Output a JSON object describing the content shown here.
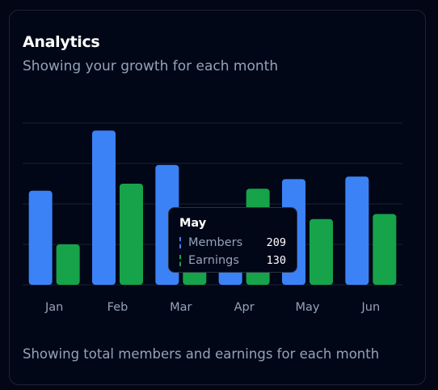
{
  "card": {
    "title": "Analytics",
    "subtitle": "Showing your growth for each month",
    "footer": "Showing total members and earnings for each month"
  },
  "tooltip": {
    "title": "May",
    "rows": [
      {
        "label": "Members",
        "value": "209",
        "color": "#3b82f6"
      },
      {
        "label": "Earnings",
        "value": "130",
        "color": "#16a34a"
      }
    ]
  },
  "chart_data": {
    "type": "bar",
    "categories": [
      "Jan",
      "Feb",
      "Mar",
      "Apr",
      "May",
      "Jun"
    ],
    "series": [
      {
        "name": "Members",
        "color": "#3b82f6",
        "values": [
          186,
          305,
          237,
          73,
          209,
          214
        ]
      },
      {
        "name": "Earnings",
        "color": "#16a34a",
        "values": [
          80,
          200,
          120,
          190,
          130,
          140
        ]
      }
    ],
    "ylim": [
      0,
      320
    ],
    "grid": true,
    "title": "",
    "xlabel": "",
    "ylabel": ""
  }
}
